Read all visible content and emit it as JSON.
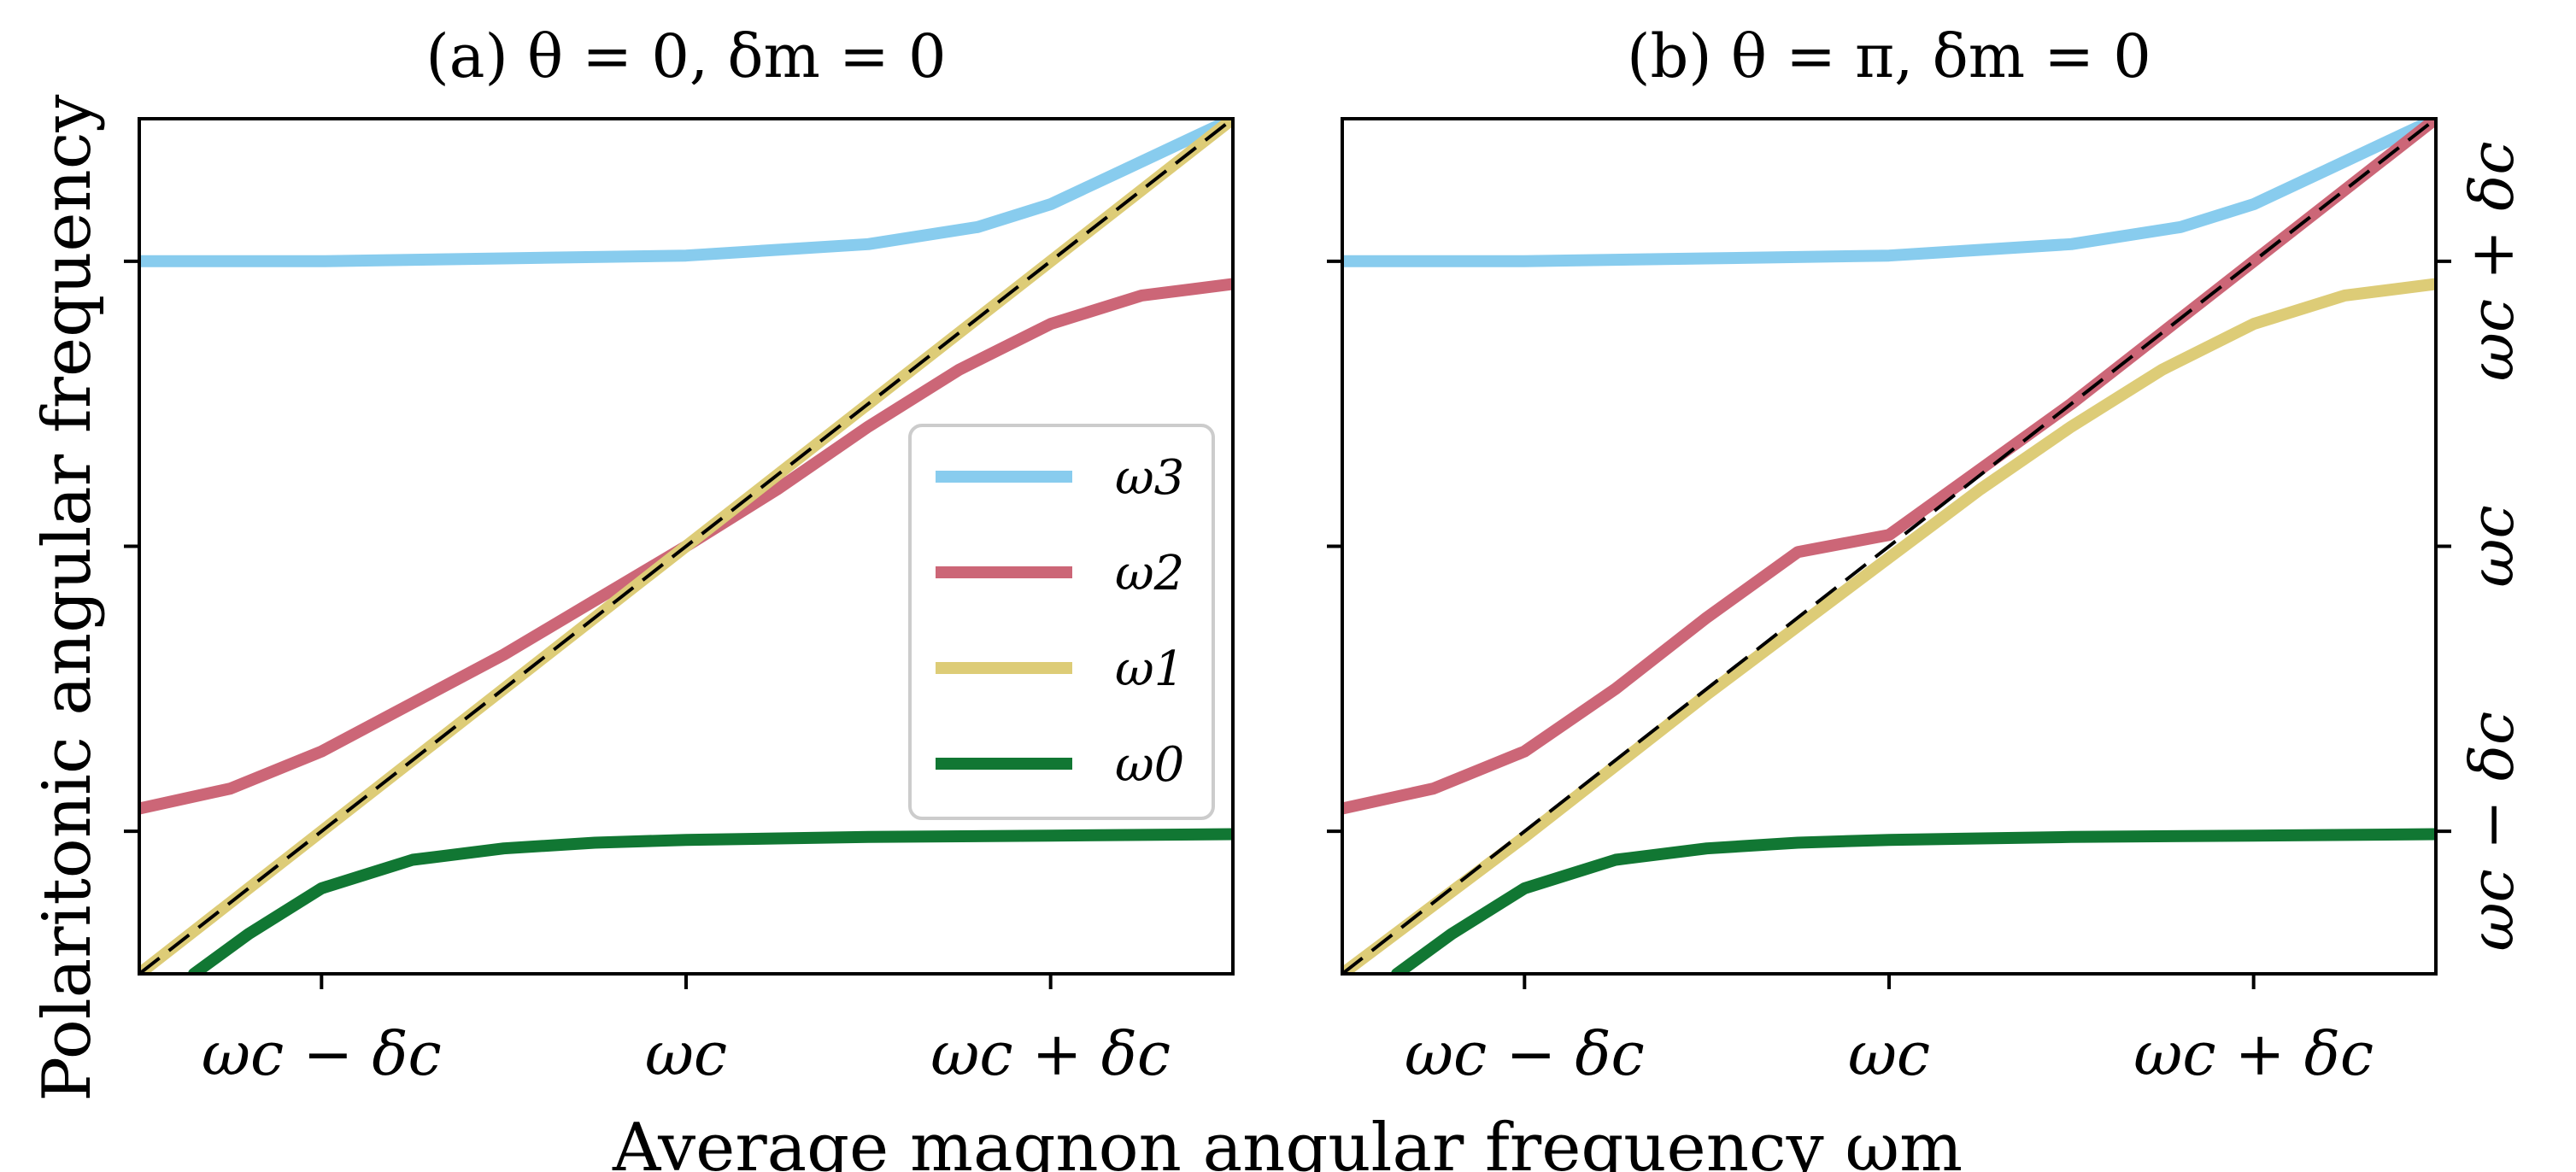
{
  "figure": {
    "xlabel": "Average magnon angular frequency ωm",
    "ylabel": "Polaritonic angular frequency"
  },
  "chart_data": [
    {
      "type": "line",
      "panel": "a",
      "title": "(a) θ = 0, δm = 0",
      "xlim": [
        -1.5,
        1.5
      ],
      "ylim": [
        -1.5,
        1.5
      ],
      "xticks": [
        -1,
        0,
        1
      ],
      "xticklabels": [
        "ωc − δc",
        "ωc",
        "ωc + δc"
      ],
      "yticks": [
        -1,
        0,
        1
      ],
      "yticklabels": [],
      "legend": {
        "position": "center-right",
        "entries": [
          "ω3",
          "ω2",
          "ω1",
          "ω0"
        ]
      },
      "series": [
        {
          "name": "ω3",
          "color": "#88CCEE",
          "x": [
            -1.5,
            -1.0,
            -0.5,
            0.0,
            0.5,
            0.8,
            1.0,
            1.2,
            1.4,
            1.5
          ],
          "y": [
            1.0,
            1.0,
            1.01,
            1.02,
            1.06,
            1.12,
            1.2,
            1.32,
            1.44,
            1.5
          ]
        },
        {
          "name": "ω2",
          "color": "#CC6677",
          "x": [
            -1.5,
            -1.25,
            -1.0,
            -0.75,
            -0.5,
            -0.25,
            0.0,
            0.25,
            0.5,
            0.75,
            1.0,
            1.25,
            1.5
          ],
          "y": [
            -0.92,
            -0.85,
            -0.72,
            -0.55,
            -0.38,
            -0.19,
            0.0,
            0.2,
            0.42,
            0.62,
            0.78,
            0.88,
            0.92
          ]
        },
        {
          "name": "ω1",
          "color": "#DDCC77",
          "x": [
            -1.5,
            1.5
          ],
          "y": [
            -1.5,
            1.5
          ]
        },
        {
          "name": "ω0",
          "color": "#117733",
          "x": [
            -1.35,
            -1.2,
            -1.0,
            -0.75,
            -0.5,
            -0.25,
            0.0,
            0.5,
            1.0,
            1.5
          ],
          "y": [
            -1.5,
            -1.36,
            -1.2,
            -1.1,
            -1.06,
            -1.04,
            -1.03,
            -1.02,
            -1.015,
            -1.01
          ]
        },
        {
          "name": "",
          "style": "dashed",
          "color": "#000000",
          "x": [
            -1.5,
            1.5
          ],
          "y": [
            -1.5,
            1.5
          ]
        }
      ]
    },
    {
      "type": "line",
      "panel": "b",
      "title": "(b) θ = π, δm = 0",
      "xlim": [
        -1.5,
        1.5
      ],
      "ylim": [
        -1.5,
        1.5
      ],
      "xticks": [
        -1,
        0,
        1
      ],
      "xticklabels": [
        "ωc − δc",
        "ωc",
        "ωc + δc"
      ],
      "yticks": [
        -1,
        0,
        1
      ],
      "yticklabels": [
        "ωc − δc",
        "ωc",
        "ωc + δc"
      ],
      "series": [
        {
          "name": "ω3",
          "color": "#88CCEE",
          "x": [
            -1.5,
            -1.0,
            -0.5,
            0.0,
            0.5,
            0.8,
            1.0,
            1.2,
            1.4,
            1.5
          ],
          "y": [
            1.0,
            1.0,
            1.01,
            1.02,
            1.06,
            1.12,
            1.2,
            1.32,
            1.44,
            1.5
          ]
        },
        {
          "name": "ω2",
          "color": "#CC6677",
          "x": [
            -1.5,
            -1.25,
            -1.0,
            -0.75,
            -0.5,
            -0.25,
            0.0,
            0.5,
            1.0,
            1.5
          ],
          "y": [
            -0.92,
            -0.85,
            -0.72,
            -0.5,
            -0.25,
            -0.02,
            0.04,
            0.5,
            1.0,
            1.5
          ]
        },
        {
          "name": "ω1",
          "color": "#DDCC77",
          "x": [
            -1.5,
            -1.0,
            -0.5,
            0.0,
            0.25,
            0.5,
            0.75,
            1.0,
            1.25,
            1.5
          ],
          "y": [
            -1.5,
            -1.02,
            -0.52,
            -0.04,
            0.2,
            0.42,
            0.62,
            0.78,
            0.88,
            0.92
          ]
        },
        {
          "name": "ω0",
          "color": "#117733",
          "x": [
            -1.35,
            -1.2,
            -1.0,
            -0.75,
            -0.5,
            -0.25,
            0.0,
            0.5,
            1.0,
            1.5
          ],
          "y": [
            -1.5,
            -1.36,
            -1.2,
            -1.1,
            -1.06,
            -1.04,
            -1.03,
            -1.02,
            -1.015,
            -1.01
          ]
        },
        {
          "name": "",
          "style": "dashed",
          "color": "#000000",
          "x": [
            -1.5,
            1.5
          ],
          "y": [
            -1.5,
            1.5
          ]
        }
      ]
    }
  ]
}
